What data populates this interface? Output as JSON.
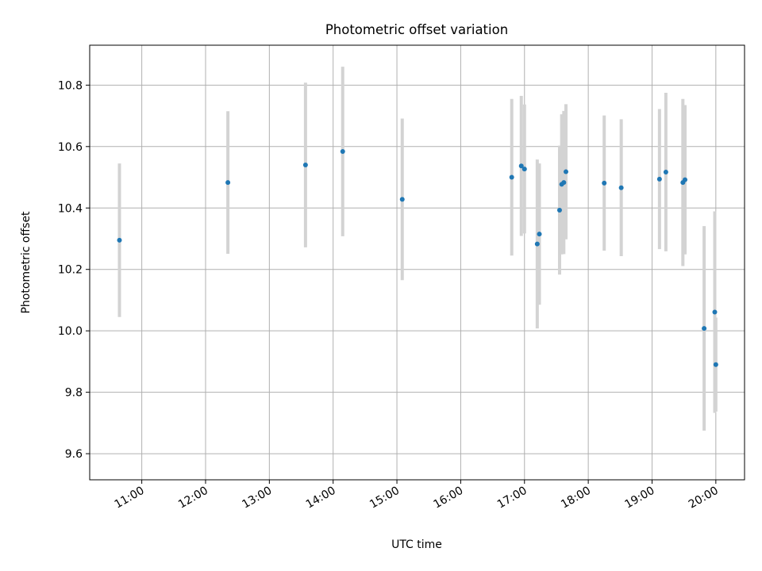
{
  "chart_data": {
    "type": "scatter",
    "title": "Photometric offset variation",
    "xlabel": "UTC time",
    "ylabel": "Photometric offset",
    "xlim": [
      "10:11",
      "20:27"
    ],
    "ylim": [
      9.515,
      10.93
    ],
    "grid": true,
    "x_ticks": [
      "11:00",
      "12:00",
      "13:00",
      "14:00",
      "15:00",
      "16:00",
      "17:00",
      "18:00",
      "19:00",
      "20:00"
    ],
    "y_ticks": [
      "9.6",
      "9.8",
      "10.0",
      "10.2",
      "10.4",
      "10.6",
      "10.8"
    ],
    "colors": {
      "marker": "#1f77b4",
      "errorbar": "#d3d3d3",
      "grid": "#b0b0b0"
    },
    "points": [
      {
        "x": "10:39",
        "y": 10.295,
        "err": 0.25
      },
      {
        "x": "12:21",
        "y": 10.483,
        "err": 0.232
      },
      {
        "x": "13:34",
        "y": 10.54,
        "err": 0.268
      },
      {
        "x": "14:09",
        "y": 10.584,
        "err": 0.276
      },
      {
        "x": "15:05",
        "y": 10.428,
        "err": 0.263
      },
      {
        "x": "16:48",
        "y": 10.5,
        "err": 0.255
      },
      {
        "x": "16:57",
        "y": 10.537,
        "err": 0.228
      },
      {
        "x": "17:00",
        "y": 10.527,
        "err": 0.21
      },
      {
        "x": "17:12",
        "y": 10.283,
        "err": 0.275
      },
      {
        "x": "17:14",
        "y": 10.315,
        "err": 0.23
      },
      {
        "x": "17:33",
        "y": 10.393,
        "err": 0.21
      },
      {
        "x": "17:35",
        "y": 10.477,
        "err": 0.228
      },
      {
        "x": "17:37",
        "y": 10.483,
        "err": 0.233
      },
      {
        "x": "17:39",
        "y": 10.518,
        "err": 0.22
      },
      {
        "x": "18:15",
        "y": 10.481,
        "err": 0.22
      },
      {
        "x": "18:31",
        "y": 10.466,
        "err": 0.223
      },
      {
        "x": "19:07",
        "y": 10.494,
        "err": 0.228
      },
      {
        "x": "19:13",
        "y": 10.517,
        "err": 0.258
      },
      {
        "x": "19:29",
        "y": 10.483,
        "err": 0.272
      },
      {
        "x": "19:31",
        "y": 10.492,
        "err": 0.243
      },
      {
        "x": "19:49",
        "y": 10.008,
        "err": 0.333
      },
      {
        "x": "19:59",
        "y": 10.061,
        "err": 0.328
      },
      {
        "x": "20:00",
        "y": 9.89,
        "err": 0.153
      }
    ]
  }
}
